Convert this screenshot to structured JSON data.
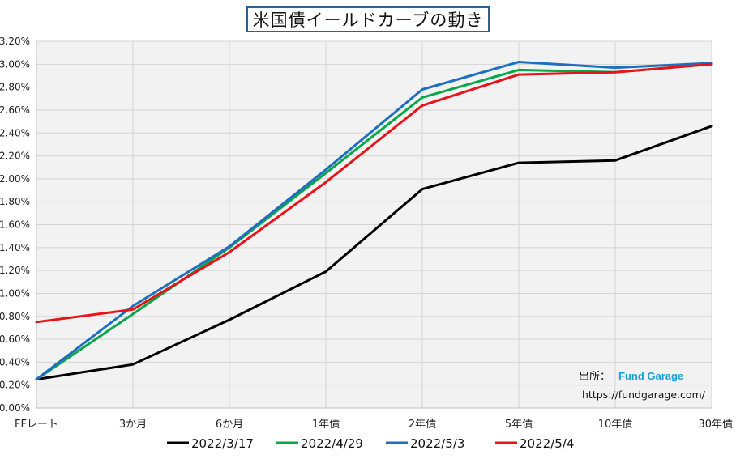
{
  "chart_data": {
    "type": "line",
    "title": "米国債イールドカーブの動き",
    "categories": [
      "FFレート",
      "3か月",
      "6か月",
      "1年債",
      "2年債",
      "5年債",
      "10年債",
      "30年債"
    ],
    "y_ticks": [
      "0.00%",
      "0.20%",
      "0.40%",
      "0.60%",
      "0.80%",
      "1.00%",
      "1.20%",
      "1.40%",
      "1.60%",
      "1.80%",
      "2.00%",
      "2.20%",
      "2.40%",
      "2.60%",
      "2.80%",
      "3.00%",
      "3.20%"
    ],
    "ylim": [
      0,
      3.2
    ],
    "grid": true,
    "legend_position": "bottom",
    "series": [
      {
        "name": "2022/3/17",
        "color": "#000000",
        "values": [
          0.25,
          0.38,
          0.77,
          1.19,
          1.91,
          2.14,
          2.16,
          2.46
        ]
      },
      {
        "name": "2022/4/29",
        "color": "#0aa64a",
        "values": [
          0.25,
          0.82,
          1.4,
          2.05,
          2.71,
          2.95,
          2.93,
          3.0
        ]
      },
      {
        "name": "2022/5/3",
        "color": "#1f6fc0",
        "values": [
          0.25,
          0.89,
          1.41,
          2.08,
          2.78,
          3.02,
          2.97,
          3.01
        ]
      },
      {
        "name": "2022/5/4",
        "color": "#e8141a",
        "values": [
          0.75,
          0.86,
          1.36,
          1.97,
          2.64,
          2.91,
          2.93,
          3.0
        ]
      }
    ]
  },
  "source": {
    "label": "出所：",
    "brand": "Fund Garage",
    "url": "https://fundgarage.com/"
  }
}
